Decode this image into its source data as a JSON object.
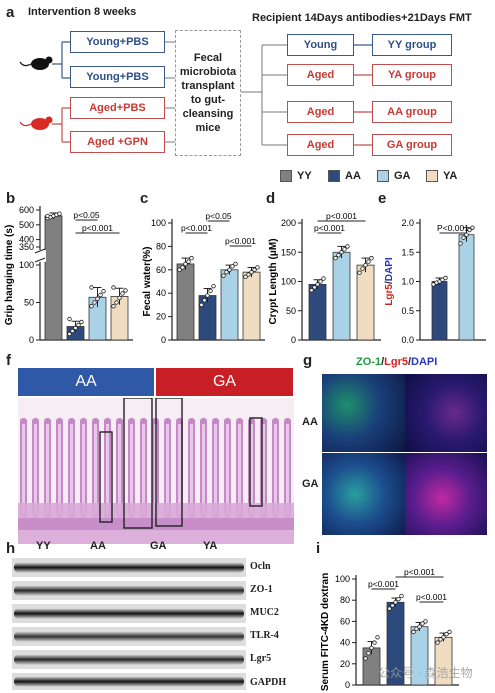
{
  "panel_a": {
    "label": "a",
    "title_left": "Intervention 8 weeks",
    "title_right": "Recipient 14Days antibodies+21Days FMT",
    "groups_left": [
      "Young+PBS",
      "Young+PBS",
      "Aged+PBS",
      "Aged +GPN"
    ],
    "center": "Fecal microbiota transplant to gut-cleansing mice",
    "recipients": [
      "Young",
      "Aged",
      "Aged",
      "Aged"
    ],
    "outcomes": [
      "YY group",
      "YA group",
      "AA group",
      "GA group"
    ],
    "colors": {
      "young": "#3b5a88",
      "aged": "#c0504d"
    }
  },
  "legend": [
    {
      "label": "YY",
      "color": "#808080"
    },
    {
      "label": "AA",
      "color": "#2e4a7d"
    },
    {
      "label": "GA",
      "color": "#a9d2e6"
    },
    {
      "label": "YA",
      "color": "#f0dcc0"
    }
  ],
  "panel_b": {
    "label": "b"
  },
  "panel_c": {
    "label": "c"
  },
  "panel_d": {
    "label": "d"
  },
  "panel_e": {
    "label": "e"
  },
  "panel_f": {
    "label": "f",
    "bar_left": "AA",
    "bar_right": "GA",
    "colors": {
      "aa": "#2f58a6",
      "ga": "#c81e25"
    }
  },
  "panel_g": {
    "label": "g",
    "stain_zo1": "ZO-1",
    "stain_sep1": "/",
    "stain_lgr5": "Lgr5",
    "stain_sep2": "/",
    "stain_dapi": "DAPI",
    "row_top": "AA",
    "row_bottom": "GA"
  },
  "panel_h": {
    "label": "h",
    "lane_groups": [
      "YY",
      "AA",
      "GA",
      "YA"
    ],
    "bands": [
      "Ocln",
      "ZO-1",
      "MUC2",
      "TLR-4",
      "Lgr5",
      "GAPDH"
    ]
  },
  "panel_i": {
    "label": "i"
  },
  "watermark": "公众号 · 森浩生物",
  "chart_data": [
    {
      "id": "b",
      "type": "bar",
      "categories": [
        "YY",
        "AA",
        "GA",
        "YA"
      ],
      "values": [
        560,
        18,
        57,
        58
      ],
      "error": [
        20,
        7,
        13,
        11
      ],
      "points": [
        [
          545,
          552,
          560,
          568,
          575,
          560
        ],
        [
          8,
          12,
          16,
          20,
          24,
          28
        ],
        [
          45,
          50,
          55,
          60,
          65,
          70
        ],
        [
          45,
          50,
          56,
          62,
          66,
          70
        ]
      ],
      "ylabel": "Grip hanging time (s)",
      "yticks": [
        "0",
        "50",
        "100",
        "350",
        "400",
        "500",
        "600"
      ],
      "colors": [
        "#808080",
        "#2e4a7d",
        "#a9d2e6",
        "#f0dcc0"
      ],
      "annotations": [
        {
          "text": "p<0.05",
          "from": 1,
          "to": 2
        },
        {
          "text": "p<0.001",
          "from": 1,
          "to": 3
        }
      ]
    },
    {
      "id": "c",
      "type": "bar",
      "categories": [
        "YY",
        "AA",
        "GA",
        "YA"
      ],
      "values": [
        65,
        38,
        60,
        58
      ],
      "error": [
        5,
        6,
        4,
        4
      ],
      "points": [
        [
          60,
          62,
          65,
          67,
          70
        ],
        [
          30,
          34,
          38,
          42,
          46
        ],
        [
          55,
          58,
          60,
          63,
          65
        ],
        [
          54,
          56,
          58,
          60,
          62
        ]
      ],
      "ylabel": "Fecal water(%)",
      "ylim": [
        0,
        100
      ],
      "yticks": [
        "0",
        "20",
        "40",
        "60",
        "80",
        "100"
      ],
      "colors": [
        "#808080",
        "#2e4a7d",
        "#a9d2e6",
        "#f0dcc0"
      ],
      "annotations": [
        {
          "text": "p<0.001",
          "from": 0,
          "to": 1
        },
        {
          "text": "p<0.05",
          "from": 1,
          "to": 2,
          "upper": true
        },
        {
          "text": "p<0.001",
          "from": 2,
          "to": 3
        }
      ]
    },
    {
      "id": "d",
      "type": "bar",
      "categories": [
        "AA",
        "GA",
        "YA"
      ],
      "values": [
        95,
        150,
        128
      ],
      "error": [
        8,
        10,
        12
      ],
      "points": [
        [
          85,
          90,
          95,
          100,
          105
        ],
        [
          140,
          145,
          150,
          155,
          160
        ],
        [
          115,
          122,
          128,
          134,
          140
        ]
      ],
      "ylabel": "Crypt Length (μM)",
      "ylim": [
        0,
        200
      ],
      "yticks": [
        "0",
        "50",
        "100",
        "150",
        "200"
      ],
      "colors": [
        "#2e4a7d",
        "#a9d2e6",
        "#f0dcc0"
      ],
      "annotations": [
        {
          "text": "p<0.001",
          "from": 0,
          "to": 1
        },
        {
          "text": "p<0.001",
          "from": 0,
          "to": 2,
          "upper": true
        }
      ]
    },
    {
      "id": "e",
      "type": "bar",
      "categories": [
        "AA",
        "GA"
      ],
      "values": [
        1.0,
        1.8
      ],
      "error": [
        0.06,
        0.12
      ],
      "points": [
        [
          0.95,
          0.98,
          1.0,
          1.03,
          1.06
        ],
        [
          1.65,
          1.75,
          1.8,
          1.88,
          1.92
        ]
      ],
      "ylabel_parts": [
        "Lgr5",
        "/",
        "DAPI"
      ],
      "ylim": [
        0,
        2.0
      ],
      "yticks": [
        "0.0",
        "0.5",
        "1.0",
        "1.5",
        "2.0"
      ],
      "colors": [
        "#2e4a7d",
        "#a9d2e6"
      ],
      "annotations": [
        {
          "text": "P<0.001",
          "from": 0,
          "to": 1
        }
      ]
    },
    {
      "id": "i",
      "type": "bar",
      "categories": [
        "YY",
        "AA",
        "GA",
        "YA"
      ],
      "values": [
        35,
        78,
        55,
        45
      ],
      "error": [
        6,
        4,
        4,
        4
      ],
      "points": [
        [
          25,
          30,
          35,
          40,
          45
        ],
        [
          72,
          75,
          78,
          81,
          84
        ],
        [
          50,
          53,
          55,
          58,
          60
        ],
        [
          40,
          43,
          45,
          48,
          50
        ]
      ],
      "ylabel": "Serum FITC-4KD dextran",
      "ylim": [
        0,
        100
      ],
      "yticks": [
        "0",
        "20",
        "40",
        "60",
        "80",
        "100"
      ],
      "colors": [
        "#808080",
        "#2e4a7d",
        "#a9d2e6",
        "#f0dcc0"
      ],
      "annotations": [
        {
          "text": "p<0.001",
          "from": 0,
          "to": 1
        },
        {
          "text": "p<0.001",
          "from": 1,
          "to": 3,
          "upper": true
        },
        {
          "text": "p<0.001",
          "from": 2,
          "to": 3
        }
      ]
    }
  ]
}
